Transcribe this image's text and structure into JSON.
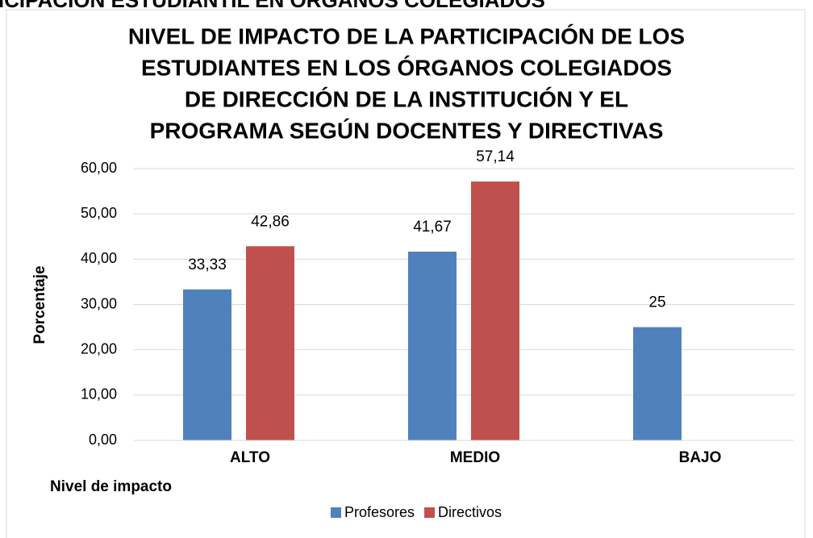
{
  "header": "TICIPACIÓN ESTUDIANTIL EN ÓRGANOS COLEGIADOS",
  "chart_data": {
    "type": "bar",
    "title": [
      "NIVEL DE IMPACTO DE LA PARTICIPACIÓN DE LOS",
      "ESTUDIANTES EN LOS ÓRGANOS COLEGIADOS",
      "DE DIRECCIÓN DE LA INSTITUCIÓN Y EL",
      "PROGRAMA SEGÚN DOCENTES Y DIRECTIVAS"
    ],
    "x_label": "Nivel de impacto",
    "y_label": "Porcentaje",
    "categories": [
      "ALTO",
      "MEDIO",
      "BAJO"
    ],
    "series": [
      {
        "name": "Profesores",
        "color": "#4f81bd",
        "values": [
          33.33,
          41.67,
          25
        ],
        "value_labels": [
          "33,33",
          "41,67",
          "25"
        ]
      },
      {
        "name": "Directivos",
        "color": "#c0504d",
        "values": [
          42.86,
          57.14,
          null
        ],
        "value_labels": [
          "42,86",
          "57,14",
          null
        ]
      }
    ],
    "ylim": [
      0,
      60
    ],
    "yticks": [
      {
        "value": 0,
        "label": "0,00"
      },
      {
        "value": 10,
        "label": "10,00"
      },
      {
        "value": 20,
        "label": "20,00"
      },
      {
        "value": 30,
        "label": "30,00"
      },
      {
        "value": 40,
        "label": "40,00"
      },
      {
        "value": 50,
        "label": "50,00"
      },
      {
        "value": 60,
        "label": "60,00"
      }
    ],
    "grid": true,
    "legend": "bottom"
  }
}
